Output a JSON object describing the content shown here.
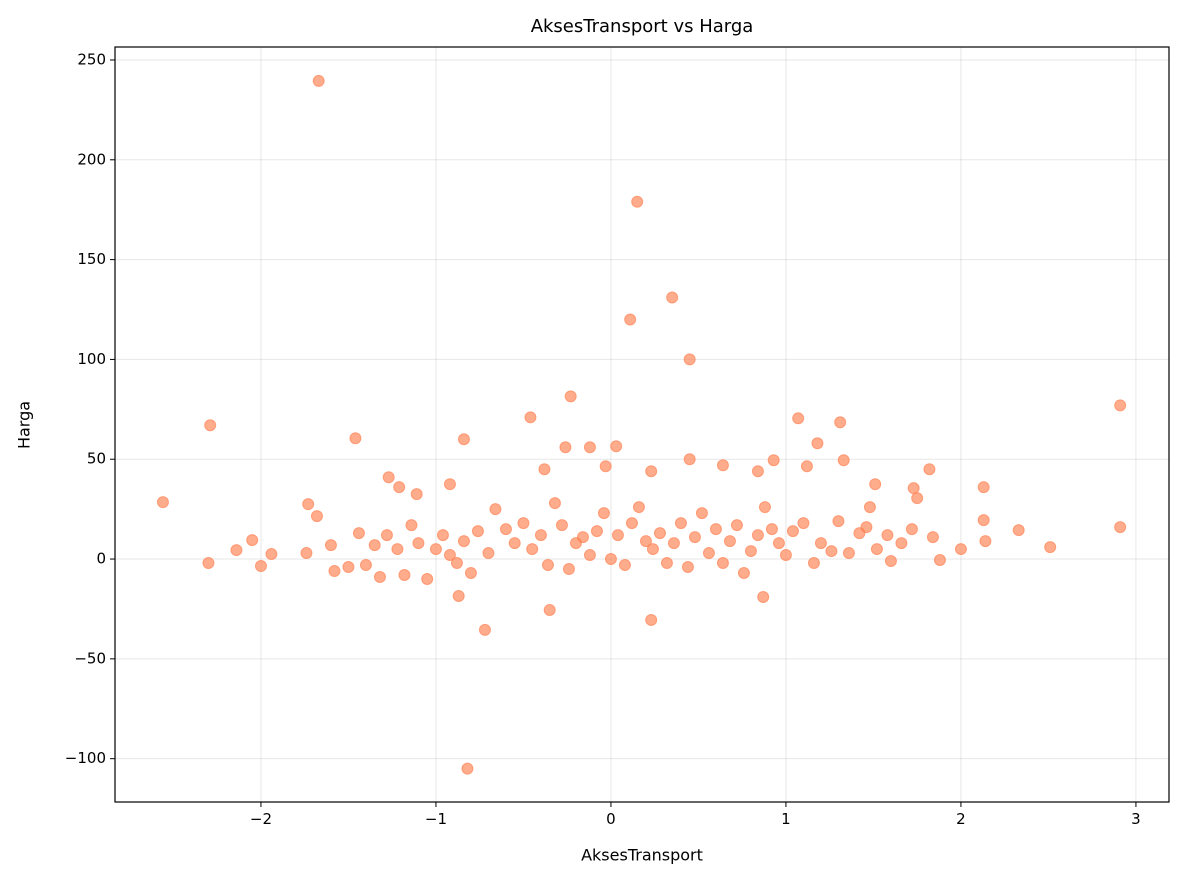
{
  "chart_data": {
    "type": "scatter",
    "title": "AksesTransport vs Harga",
    "x_label": "AksesTransport",
    "y_label": "Harga",
    "color": "#ff7f50",
    "grid": true,
    "xlim": [
      -2.834,
      3.189
    ],
    "ylim": [
      -121.7,
      256.5
    ],
    "xticks": [
      {
        "value": -2,
        "label": "−2"
      },
      {
        "value": -1,
        "label": "−1"
      },
      0,
      1,
      2,
      3
    ],
    "yticks": [
      {
        "value": -100,
        "label": "−100"
      },
      {
        "value": -50,
        "label": "−50"
      },
      0,
      50,
      100,
      150,
      200,
      250
    ],
    "x": [
      -1.67,
      0.15,
      0.35,
      0.11,
      0.45,
      2.91,
      -2.29,
      -0.23,
      -0.46,
      -2.56,
      -1.46,
      -0.84,
      1.07,
      1.31,
      -0.82,
      -0.72,
      0.23,
      -0.35,
      0.87,
      -0.87,
      2.91,
      2.51,
      2.33,
      2.13,
      2.13,
      2.0,
      1.88,
      1.82,
      -2.3,
      -2.14,
      -2.05,
      -1.94,
      -2.0,
      -1.73,
      -1.68,
      -1.27,
      -1.21,
      -1.11,
      -0.92,
      -0.12,
      0.03,
      -0.03,
      0.23,
      0.45,
      0.64,
      0.93,
      1.18,
      1.33,
      1.12,
      -0.38,
      -0.26,
      0.84,
      1.51,
      1.73,
      1.75,
      -1.74,
      -1.6,
      -1.58,
      -1.5,
      -1.44,
      -1.4,
      -1.35,
      -1.32,
      -1.28,
      -1.22,
      -1.18,
      -1.14,
      -1.1,
      -1.05,
      -1.0,
      -0.96,
      -0.92,
      -0.88,
      -0.84,
      -0.8,
      -0.76,
      -0.7,
      -0.66,
      -0.6,
      -0.55,
      -0.5,
      -0.45,
      -0.4,
      -0.36,
      -0.32,
      -0.28,
      -0.24,
      -0.2,
      -0.16,
      -0.12,
      -0.08,
      -0.04,
      0.0,
      0.04,
      0.08,
      0.12,
      0.16,
      0.2,
      0.24,
      0.28,
      0.32,
      0.36,
      0.4,
      0.44,
      0.48,
      0.52,
      0.56,
      0.6,
      0.64,
      0.68,
      0.72,
      0.76,
      0.8,
      0.84,
      0.88,
      0.92,
      0.96,
      1.0,
      1.04,
      1.1,
      1.16,
      1.2,
      1.26,
      1.3,
      1.36,
      1.42,
      1.48,
      1.52,
      1.58,
      1.6,
      1.66,
      1.72,
      2.14,
      1.84,
      1.46
    ],
    "y": [
      239.5,
      179,
      131,
      120,
      100,
      77,
      67,
      81.5,
      71,
      28.5,
      60.5,
      60,
      70.5,
      68.5,
      -105,
      -35.5,
      -30.5,
      -25.5,
      -19,
      -18.5,
      16,
      6,
      14.5,
      19.5,
      36,
      5,
      -0.5,
      45,
      -2,
      4.5,
      9.5,
      2.5,
      -3.5,
      27.5,
      21.5,
      41,
      36,
      32.5,
      37.5,
      56,
      56.5,
      46.5,
      44,
      50,
      47,
      49.5,
      58,
      49.5,
      46.5,
      45,
      56,
      44,
      37.5,
      35.5,
      30.5,
      3,
      7,
      -6,
      -4,
      13,
      -3,
      7,
      -9,
      12,
      5,
      -8,
      17,
      8,
      -10,
      5,
      12,
      2,
      -2,
      9,
      -7,
      14,
      3,
      25,
      15,
      8,
      18,
      5,
      12,
      -3,
      28,
      17,
      -5,
      8,
      11,
      2,
      14,
      23,
      0,
      12,
      -3,
      18,
      26,
      9,
      5,
      13,
      -2,
      8,
      18,
      -4,
      11,
      23,
      3,
      15,
      -2,
      9,
      17,
      -7,
      4,
      12,
      26,
      15,
      8,
      2,
      14,
      18,
      -2,
      8,
      4,
      19,
      3,
      13,
      26,
      5,
      12,
      -1,
      8,
      15,
      9,
      11,
      16
    ]
  }
}
